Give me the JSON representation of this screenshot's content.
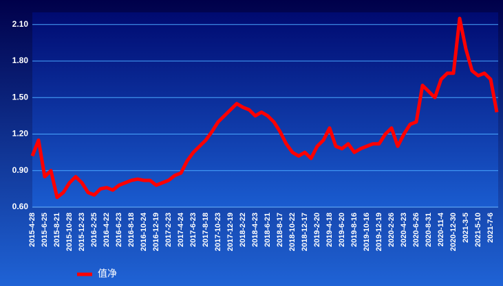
{
  "chart_data": {
    "type": "line",
    "categories": [
      "2015-4-28",
      null,
      "2015-6-25",
      null,
      "2015-8-21",
      null,
      "2015-10-28",
      null,
      "2015-12-23",
      null,
      "2016-2-25",
      null,
      "2016-4-22",
      null,
      "2016-6-23",
      null,
      "2016-8-18",
      null,
      "2016-10-24",
      null,
      "2016-12-19",
      null,
      "2017-2-23",
      null,
      "2017-4-24",
      null,
      "2017-6-23",
      null,
      "2017-8-18",
      null,
      "2017-10-23",
      null,
      "2017-12-19",
      null,
      "2018-2-22",
      null,
      "2018-4-23",
      null,
      "2018-6-21",
      null,
      "2018-8-17",
      null,
      "2018-10-22",
      null,
      "2018-12-17",
      null,
      "2019-2-20",
      null,
      "2019-4-18",
      null,
      "2019-6-20",
      null,
      "2019-8-16",
      null,
      "2019-10-16",
      null,
      "2019-12-19",
      null,
      "2020-2-26",
      null,
      "2020-4-23",
      null,
      "2020-6-26",
      null,
      "2020-8-31",
      null,
      "2020-11-4",
      null,
      "2020-12-30",
      null,
      "2021-3-5",
      null,
      "2021-5-10",
      null,
      "2021-7-6",
      null
    ],
    "series": [
      {
        "name": "值净",
        "color": "#ff0000",
        "values": [
          1.02,
          1.15,
          0.85,
          0.9,
          0.68,
          0.72,
          0.8,
          0.85,
          0.8,
          0.72,
          0.7,
          0.75,
          0.76,
          0.74,
          0.78,
          0.8,
          0.82,
          0.83,
          0.82,
          0.82,
          0.78,
          0.8,
          0.82,
          0.86,
          0.88,
          0.98,
          1.05,
          1.1,
          1.15,
          1.22,
          1.3,
          1.35,
          1.4,
          1.45,
          1.42,
          1.4,
          1.35,
          1.38,
          1.35,
          1.3,
          1.22,
          1.12,
          1.05,
          1.02,
          1.05,
          1.0,
          1.1,
          1.15,
          1.25,
          1.1,
          1.08,
          1.12,
          1.05,
          1.08,
          1.1,
          1.12,
          1.12,
          1.2,
          1.25,
          1.1,
          1.2,
          1.28,
          1.3,
          1.6,
          1.55,
          1.5,
          1.65,
          1.7,
          1.7,
          2.15,
          1.9,
          1.72,
          1.68,
          1.7,
          1.65,
          1.38
        ]
      }
    ],
    "ylim": [
      0.6,
      2.2
    ],
    "yticks": [
      {
        "value": 0.6,
        "label": "0.60"
      },
      {
        "value": 0.9,
        "label": "0.90"
      },
      {
        "value": 1.2,
        "label": "1.20"
      },
      {
        "value": 1.5,
        "label": "1.50"
      },
      {
        "value": 1.8,
        "label": "1.80"
      },
      {
        "value": 2.1,
        "label": "2.10"
      }
    ],
    "grid": true,
    "legend": "bottom-left"
  }
}
